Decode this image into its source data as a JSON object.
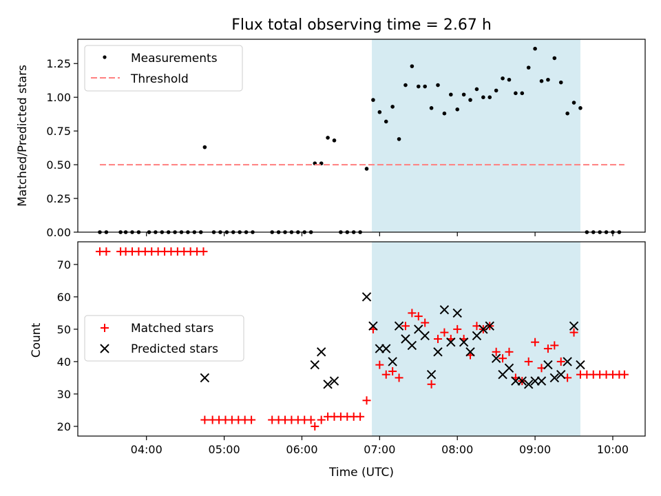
{
  "chart_data": [
    {
      "type": "scatter",
      "title": "Flux total observing time = 2.67 h",
      "ylabel": "Matched/Predicted stars",
      "xlabel": "",
      "xlim": [
        "03:07",
        "10:25"
      ],
      "ylim": [
        0,
        1.43
      ],
      "yticks": [
        "0.00",
        "0.25",
        "0.50",
        "0.75",
        "1.00",
        "1.25"
      ],
      "legend": {
        "placement": "top-left",
        "entries": [
          "Measurements",
          "Threshold"
        ]
      },
      "shaded_span": {
        "start": "06:54",
        "end": "09:35",
        "color": "#add8e6"
      },
      "series": [
        {
          "name": "Measurements",
          "marker": "dot",
          "color": "#000000",
          "points": [
            [
              "03:24",
              0
            ],
            [
              "03:29",
              0
            ],
            [
              "03:40",
              0
            ],
            [
              "03:44",
              0
            ],
            [
              "03:49",
              0
            ],
            [
              "03:54",
              0
            ],
            [
              "04:02",
              0
            ],
            [
              "04:07",
              0
            ],
            [
              "04:12",
              0
            ],
            [
              "04:17",
              0
            ],
            [
              "04:22",
              0
            ],
            [
              "04:27",
              0
            ],
            [
              "04:32",
              0
            ],
            [
              "04:37",
              0
            ],
            [
              "04:42",
              0
            ],
            [
              "04:45",
              0.63
            ],
            [
              "04:52",
              0
            ],
            [
              "04:57",
              0
            ],
            [
              "05:02",
              0
            ],
            [
              "05:07",
              0
            ],
            [
              "05:12",
              0
            ],
            [
              "05:17",
              0
            ],
            [
              "05:22",
              0
            ],
            [
              "05:37",
              0
            ],
            [
              "05:42",
              0
            ],
            [
              "05:47",
              0
            ],
            [
              "05:52",
              0
            ],
            [
              "05:57",
              0
            ],
            [
              "06:02",
              0
            ],
            [
              "06:07",
              0
            ],
            [
              "06:10",
              0.51
            ],
            [
              "06:15",
              0.51
            ],
            [
              "06:20",
              0.7
            ],
            [
              "06:25",
              0.68
            ],
            [
              "06:30",
              0
            ],
            [
              "06:35",
              0
            ],
            [
              "06:40",
              0
            ],
            [
              "06:45",
              0
            ],
            [
              "06:50",
              0.47
            ],
            [
              "06:55",
              0.98
            ],
            [
              "07:00",
              0.89
            ],
            [
              "07:05",
              0.82
            ],
            [
              "07:10",
              0.93
            ],
            [
              "07:15",
              0.69
            ],
            [
              "07:20",
              1.09
            ],
            [
              "07:25",
              1.23
            ],
            [
              "07:30",
              1.08
            ],
            [
              "07:35",
              1.08
            ],
            [
              "07:40",
              0.92
            ],
            [
              "07:45",
              1.09
            ],
            [
              "07:50",
              0.88
            ],
            [
              "07:55",
              1.02
            ],
            [
              "08:00",
              0.91
            ],
            [
              "08:05",
              1.02
            ],
            [
              "08:10",
              0.98
            ],
            [
              "08:15",
              1.06
            ],
            [
              "08:20",
              1.0
            ],
            [
              "08:25",
              1.0
            ],
            [
              "08:30",
              1.05
            ],
            [
              "08:35",
              1.14
            ],
            [
              "08:40",
              1.13
            ],
            [
              "08:45",
              1.03
            ],
            [
              "08:50",
              1.03
            ],
            [
              "08:55",
              1.22
            ],
            [
              "09:00",
              1.36
            ],
            [
              "09:05",
              1.12
            ],
            [
              "09:10",
              1.13
            ],
            [
              "09:15",
              1.29
            ],
            [
              "09:20",
              1.11
            ],
            [
              "09:25",
              0.88
            ],
            [
              "09:30",
              0.96
            ],
            [
              "09:35",
              0.92
            ],
            [
              "09:40",
              0
            ],
            [
              "09:45",
              0
            ],
            [
              "09:50",
              0
            ],
            [
              "09:55",
              0
            ],
            [
              "10:00",
              0
            ],
            [
              "10:05",
              0
            ]
          ]
        },
        {
          "name": "Threshold",
          "style": "dashed",
          "color": "#ff7f7f",
          "points": [
            [
              "03:24",
              0.5
            ],
            [
              "10:09",
              0.5
            ]
          ]
        }
      ]
    },
    {
      "type": "scatter",
      "title": "",
      "xlabel": "Time (UTC)",
      "ylabel": "Count",
      "xlim": [
        "03:07",
        "10:25"
      ],
      "ylim": [
        17,
        77
      ],
      "xticks": [
        "04:00",
        "05:00",
        "06:00",
        "07:00",
        "08:00",
        "09:00",
        "10:00"
      ],
      "yticks": [
        "20",
        "30",
        "40",
        "50",
        "60",
        "70"
      ],
      "legend": {
        "placement": "center-left",
        "entries": [
          "Matched stars",
          "Predicted stars"
        ]
      },
      "shaded_span": {
        "start": "06:54",
        "end": "09:35",
        "color": "#add8e6"
      },
      "series": [
        {
          "name": "Matched stars",
          "marker": "plus",
          "color": "#ff0000",
          "points": [
            [
              "03:24",
              74
            ],
            [
              "03:29",
              74
            ],
            [
              "03:40",
              74
            ],
            [
              "03:44",
              74
            ],
            [
              "03:49",
              74
            ],
            [
              "03:54",
              74
            ],
            [
              "03:59",
              74
            ],
            [
              "04:04",
              74
            ],
            [
              "04:09",
              74
            ],
            [
              "04:14",
              74
            ],
            [
              "04:19",
              74
            ],
            [
              "04:24",
              74
            ],
            [
              "04:29",
              74
            ],
            [
              "04:34",
              74
            ],
            [
              "04:39",
              74
            ],
            [
              "04:44",
              74
            ],
            [
              "04:45",
              22
            ],
            [
              "04:51",
              22
            ],
            [
              "04:56",
              22
            ],
            [
              "05:01",
              22
            ],
            [
              "05:06",
              22
            ],
            [
              "05:11",
              22
            ],
            [
              "05:16",
              22
            ],
            [
              "05:21",
              22
            ],
            [
              "05:37",
              22
            ],
            [
              "05:42",
              22
            ],
            [
              "05:47",
              22
            ],
            [
              "05:52",
              22
            ],
            [
              "05:57",
              22
            ],
            [
              "06:02",
              22
            ],
            [
              "06:07",
              22
            ],
            [
              "06:10",
              20
            ],
            [
              "06:15",
              22
            ],
            [
              "06:20",
              23
            ],
            [
              "06:25",
              23
            ],
            [
              "06:30",
              23
            ],
            [
              "06:35",
              23
            ],
            [
              "06:40",
              23
            ],
            [
              "06:45",
              23
            ],
            [
              "06:50",
              28
            ],
            [
              "06:55",
              50
            ],
            [
              "07:00",
              39
            ],
            [
              "07:05",
              36
            ],
            [
              "07:10",
              37
            ],
            [
              "07:15",
              35
            ],
            [
              "07:20",
              51
            ],
            [
              "07:25",
              55
            ],
            [
              "07:30",
              54
            ],
            [
              "07:35",
              52
            ],
            [
              "07:40",
              33
            ],
            [
              "07:45",
              47
            ],
            [
              "07:50",
              49
            ],
            [
              "07:55",
              47
            ],
            [
              "08:00",
              50
            ],
            [
              "08:05",
              47
            ],
            [
              "08:10",
              42
            ],
            [
              "08:15",
              51
            ],
            [
              "08:20",
              50
            ],
            [
              "08:25",
              51
            ],
            [
              "08:30",
              43
            ],
            [
              "08:35",
              41
            ],
            [
              "08:40",
              43
            ],
            [
              "08:45",
              35
            ],
            [
              "08:50",
              34
            ],
            [
              "08:55",
              40
            ],
            [
              "09:00",
              46
            ],
            [
              "09:05",
              38
            ],
            [
              "09:10",
              44
            ],
            [
              "09:15",
              45
            ],
            [
              "09:20",
              40
            ],
            [
              "09:25",
              35
            ],
            [
              "09:30",
              49
            ],
            [
              "09:35",
              36
            ],
            [
              "09:40",
              36
            ],
            [
              "09:45",
              36
            ],
            [
              "09:50",
              36
            ],
            [
              "09:55",
              36
            ],
            [
              "10:00",
              36
            ],
            [
              "10:05",
              36
            ],
            [
              "10:09",
              36
            ]
          ]
        },
        {
          "name": "Predicted stars",
          "marker": "x",
          "color": "#000000",
          "points": [
            [
              "04:45",
              35
            ],
            [
              "06:10",
              39
            ],
            [
              "06:15",
              43
            ],
            [
              "06:20",
              33
            ],
            [
              "06:25",
              34
            ],
            [
              "06:50",
              60
            ],
            [
              "06:55",
              51
            ],
            [
              "07:00",
              44
            ],
            [
              "07:05",
              44
            ],
            [
              "07:10",
              40
            ],
            [
              "07:15",
              51
            ],
            [
              "07:20",
              47
            ],
            [
              "07:25",
              45
            ],
            [
              "07:30",
              50
            ],
            [
              "07:35",
              48
            ],
            [
              "07:40",
              36
            ],
            [
              "07:45",
              43
            ],
            [
              "07:50",
              56
            ],
            [
              "07:55",
              46
            ],
            [
              "08:00",
              55
            ],
            [
              "08:05",
              46
            ],
            [
              "08:10",
              43
            ],
            [
              "08:15",
              48
            ],
            [
              "08:20",
              50
            ],
            [
              "08:25",
              51
            ],
            [
              "08:30",
              41
            ],
            [
              "08:35",
              36
            ],
            [
              "08:40",
              38
            ],
            [
              "08:45",
              34
            ],
            [
              "08:50",
              34
            ],
            [
              "08:55",
              33
            ],
            [
              "09:00",
              34
            ],
            [
              "09:05",
              34
            ],
            [
              "09:10",
              39
            ],
            [
              "09:15",
              35
            ],
            [
              "09:20",
              36
            ],
            [
              "09:25",
              40
            ],
            [
              "09:30",
              51
            ],
            [
              "09:35",
              39
            ]
          ]
        }
      ]
    }
  ]
}
